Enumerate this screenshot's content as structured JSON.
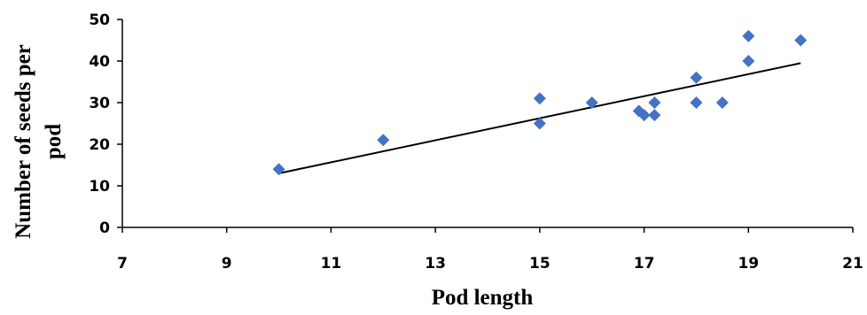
{
  "chart_data": {
    "type": "scatter",
    "xlabel": "Pod length",
    "ylabel_lines": [
      "Number of seeds per",
      "pod"
    ],
    "xlim": [
      7,
      21
    ],
    "ylim": [
      0,
      50
    ],
    "x_ticks": [
      7,
      9,
      11,
      13,
      15,
      17,
      19,
      21
    ],
    "y_ticks": [
      0,
      10,
      20,
      30,
      40,
      50
    ],
    "grid": false,
    "legend": "none",
    "marker_color": "#4472C4",
    "trendline_color": "#000000",
    "points": [
      {
        "x": 10,
        "y": 14
      },
      {
        "x": 12,
        "y": 21
      },
      {
        "x": 15,
        "y": 31
      },
      {
        "x": 15,
        "y": 25
      },
      {
        "x": 16,
        "y": 30
      },
      {
        "x": 16.9,
        "y": 28
      },
      {
        "x": 17,
        "y": 27
      },
      {
        "x": 17.2,
        "y": 30
      },
      {
        "x": 17.2,
        "y": 27
      },
      {
        "x": 18,
        "y": 36
      },
      {
        "x": 18,
        "y": 30
      },
      {
        "x": 18.5,
        "y": 30
      },
      {
        "x": 19,
        "y": 46
      },
      {
        "x": 19,
        "y": 40
      },
      {
        "x": 20,
        "y": 45
      }
    ],
    "trendline": {
      "x": [
        10,
        20
      ],
      "y": [
        13,
        39.5
      ]
    }
  }
}
